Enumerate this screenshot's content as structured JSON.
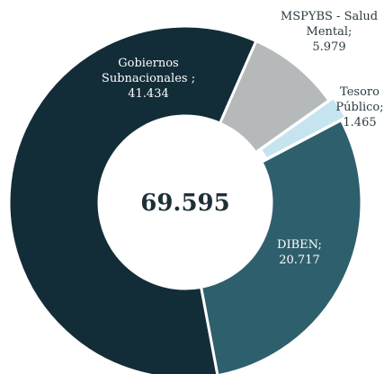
{
  "chart_data": {
    "type": "pie",
    "categories": [
      "Gobiernos Subnacionales ;",
      "MSPYBS - Salud Mental;",
      "Tesoro Público;",
      "DIBEN;"
    ],
    "values": [
      41.434,
      5.979,
      1.465,
      20.717
    ],
    "colors": [
      "#132d38",
      "#b5b9ba",
      "#c5e4ef",
      "#2e5f6c"
    ],
    "total": 69.595
  }
}
